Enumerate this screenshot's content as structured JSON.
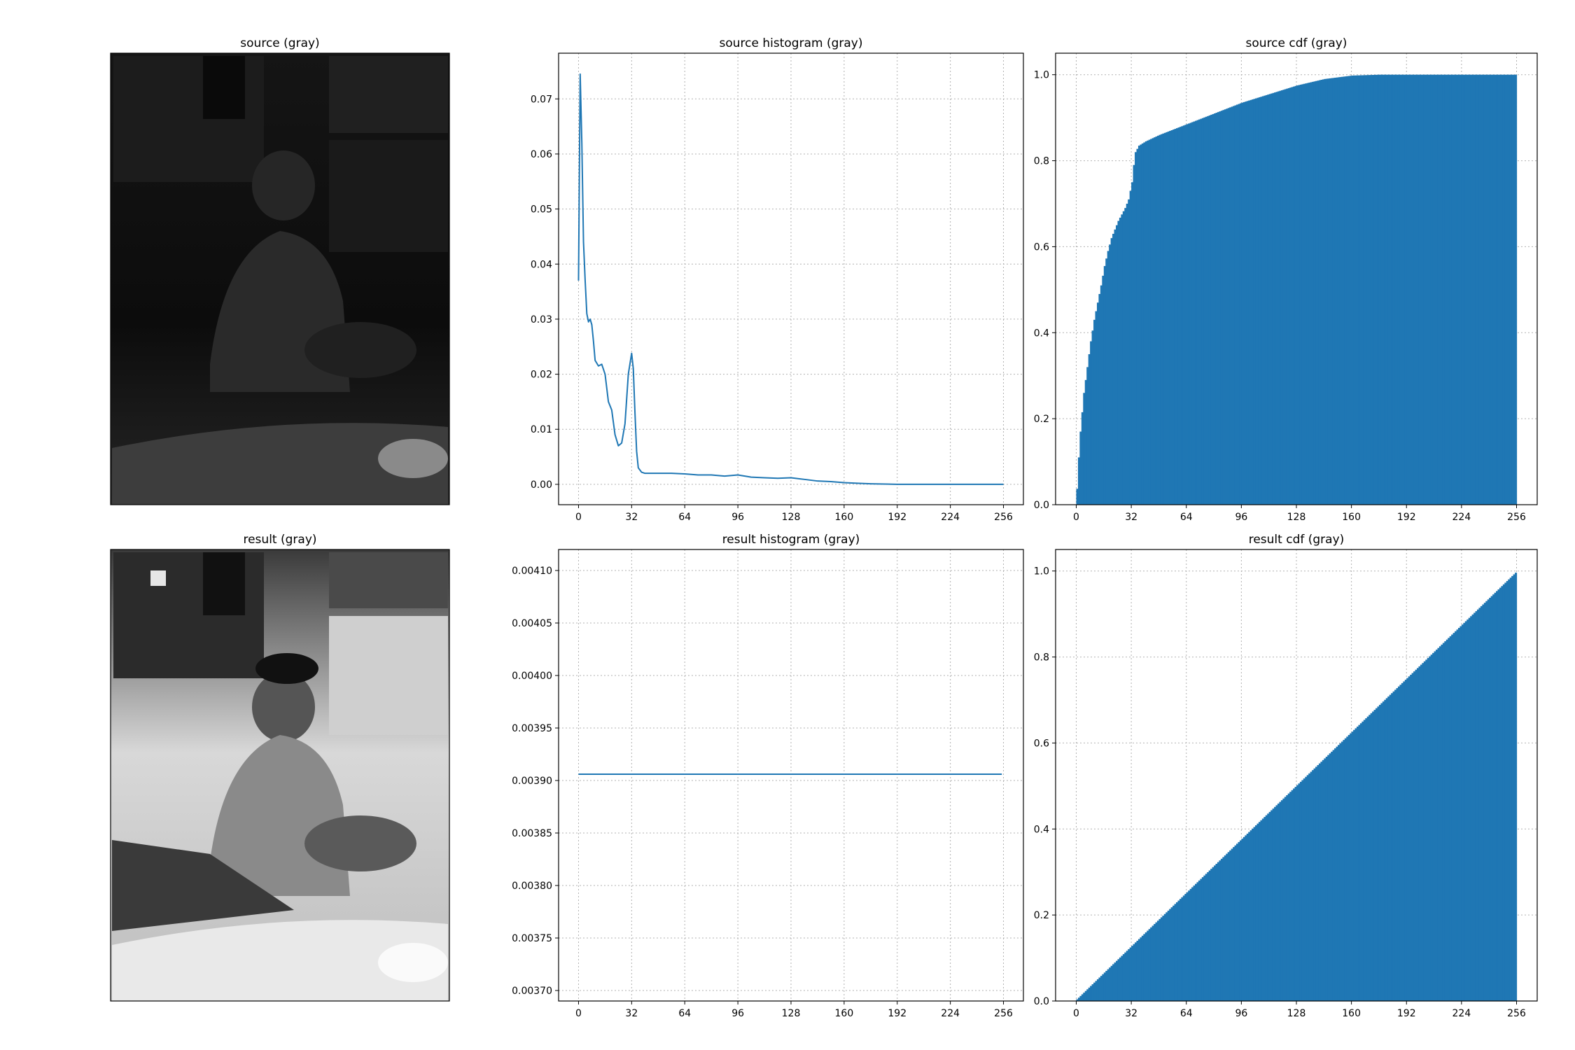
{
  "figure": {
    "source_image_title": "source (gray)",
    "result_image_title": "result (gray)"
  },
  "colors": {
    "series": "#1f77b4",
    "grid": "#b0b0b0",
    "axes": "#000000"
  },
  "chart_data": [
    {
      "id": "source-histogram",
      "type": "line",
      "title": "source histogram (gray)",
      "xlabel": "",
      "ylabel": "",
      "xlim": [
        -12,
        268
      ],
      "ylim": [
        -0.0037,
        0.0783
      ],
      "xticks": [
        0,
        32,
        64,
        96,
        128,
        160,
        192,
        224,
        256
      ],
      "yticks": [
        0.0,
        0.01,
        0.02,
        0.03,
        0.04,
        0.05,
        0.06,
        0.07
      ],
      "ytick_labels": [
        "0.00",
        "0.01",
        "0.02",
        "0.03",
        "0.04",
        "0.05",
        "0.06",
        "0.07"
      ],
      "grid": true,
      "series": [
        {
          "x": [
            0,
            1,
            2,
            3,
            4,
            5,
            6,
            7,
            8,
            9,
            10,
            12,
            14,
            16,
            18,
            20,
            22,
            24,
            26,
            28,
            30,
            32,
            33,
            34,
            35,
            36,
            38,
            40,
            44,
            48,
            56,
            64,
            72,
            80,
            88,
            96,
            104,
            112,
            120,
            128,
            136,
            144,
            152,
            160,
            168,
            176,
            192,
            224,
            256
          ],
          "y": [
            0.037,
            0.0745,
            0.062,
            0.044,
            0.037,
            0.031,
            0.0295,
            0.03,
            0.029,
            0.026,
            0.0225,
            0.0215,
            0.0218,
            0.02,
            0.015,
            0.0135,
            0.009,
            0.007,
            0.0075,
            0.011,
            0.02,
            0.0238,
            0.021,
            0.013,
            0.006,
            0.003,
            0.0022,
            0.002,
            0.002,
            0.002,
            0.002,
            0.0019,
            0.0017,
            0.0017,
            0.0015,
            0.0017,
            0.0013,
            0.0012,
            0.0011,
            0.0012,
            0.0009,
            0.0006,
            0.0005,
            0.0003,
            0.0002,
            0.0001,
            0.0,
            0.0,
            0.0
          ]
        }
      ]
    },
    {
      "id": "source-cdf",
      "type": "bar",
      "title": "source cdf (gray)",
      "xlabel": "",
      "ylabel": "",
      "xlim": [
        -12,
        268
      ],
      "ylim": [
        0,
        1.05
      ],
      "xticks": [
        0,
        32,
        64,
        96,
        128,
        160,
        192,
        224,
        256
      ],
      "yticks": [
        0.0,
        0.2,
        0.4,
        0.6,
        0.8,
        1.0
      ],
      "ytick_labels": [
        "0.0",
        "0.2",
        "0.4",
        "0.6",
        "0.8",
        "1.0"
      ],
      "grid": true,
      "bins": 256,
      "profile": {
        "x": [
          0,
          1,
          2,
          4,
          6,
          8,
          10,
          12,
          14,
          16,
          18,
          20,
          22,
          24,
          26,
          28,
          30,
          32,
          33,
          34,
          36,
          40,
          48,
          64,
          80,
          96,
          112,
          128,
          144,
          160,
          176,
          192,
          224,
          256
        ],
        "y": [
          0.037,
          0.11,
          0.17,
          0.26,
          0.32,
          0.38,
          0.43,
          0.47,
          0.51,
          0.555,
          0.59,
          0.62,
          0.64,
          0.66,
          0.675,
          0.69,
          0.71,
          0.75,
          0.79,
          0.82,
          0.835,
          0.845,
          0.86,
          0.885,
          0.91,
          0.935,
          0.955,
          0.975,
          0.99,
          0.998,
          1.0,
          1.0,
          1.0,
          1.0
        ]
      }
    },
    {
      "id": "result-histogram",
      "type": "line",
      "title": "result histogram (gray)",
      "xlabel": "",
      "ylabel": "",
      "xlim": [
        -12,
        268
      ],
      "ylim": [
        0.00369,
        0.00412
      ],
      "xticks": [
        0,
        32,
        64,
        96,
        128,
        160,
        192,
        224,
        256
      ],
      "yticks": [
        0.0037,
        0.00375,
        0.0038,
        0.00385,
        0.0039,
        0.00395,
        0.004,
        0.00405,
        0.0041
      ],
      "ytick_labels": [
        "0.00370",
        "0.00375",
        "0.00380",
        "0.00385",
        "0.00390",
        "0.00395",
        "0.00400",
        "0.00405",
        "0.00410"
      ],
      "grid": true,
      "series": [
        {
          "x": [
            0,
            255
          ],
          "y": [
            0.003906,
            0.003906
          ]
        }
      ]
    },
    {
      "id": "result-cdf",
      "type": "bar",
      "title": "result cdf (gray)",
      "xlabel": "",
      "ylabel": "",
      "xlim": [
        -12,
        268
      ],
      "ylim": [
        0,
        1.05
      ],
      "xticks": [
        0,
        32,
        64,
        96,
        128,
        160,
        192,
        224,
        256
      ],
      "yticks": [
        0.0,
        0.2,
        0.4,
        0.6,
        0.8,
        1.0
      ],
      "ytick_labels": [
        "0.0",
        "0.2",
        "0.4",
        "0.6",
        "0.8",
        "1.0"
      ],
      "grid": true,
      "bins": 256,
      "profile": {
        "x": [
          0,
          256
        ],
        "y": [
          0.0039,
          1.0
        ]
      }
    }
  ]
}
